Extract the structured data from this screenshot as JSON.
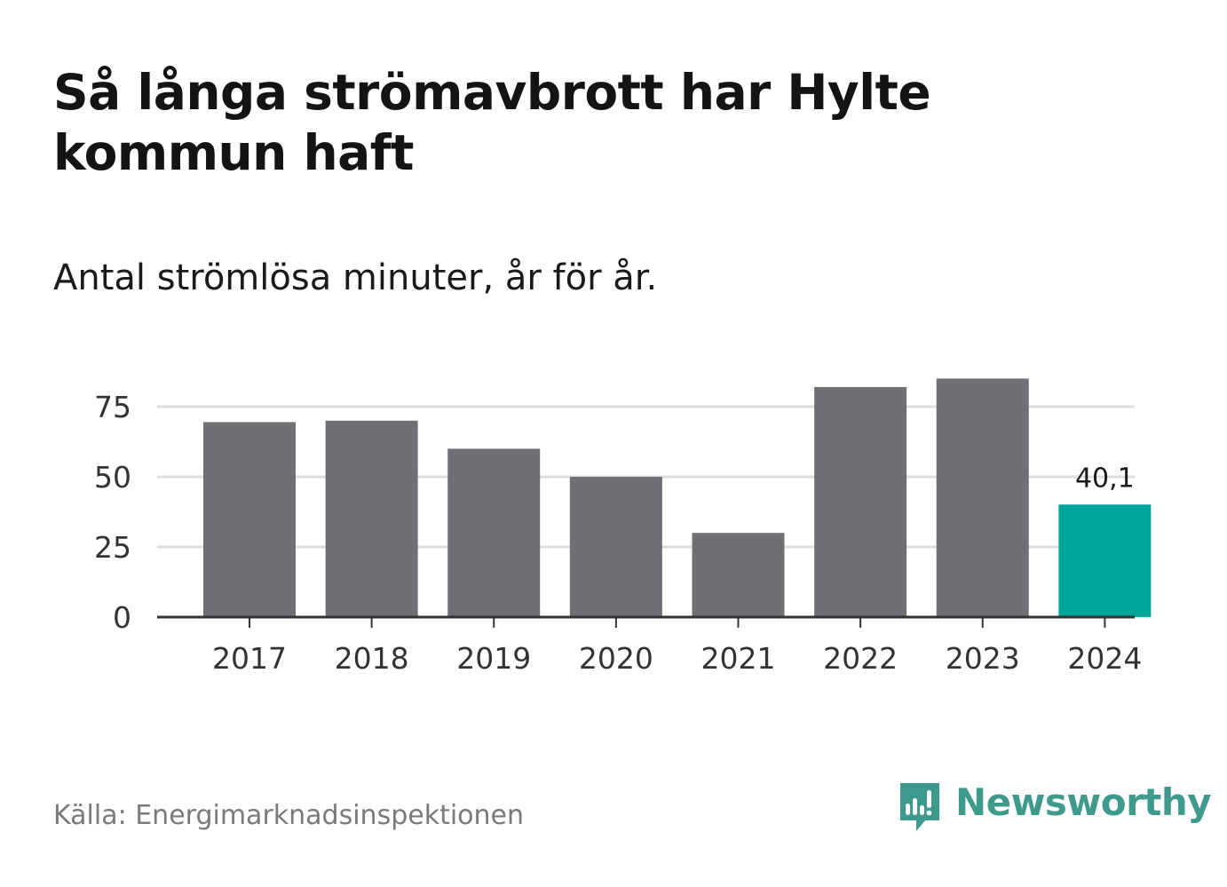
{
  "title": "Så långa strömavbrott har Hylte kommun haft",
  "subtitle": "Antal strömlösa minuter, år för år.",
  "source": "Källa: Energimarknadsinspektionen",
  "brand": {
    "name": "Newsworthy",
    "color": "#3f9a8e",
    "icon": "bar-chart-speech-bubble-icon"
  },
  "colors": {
    "bar": "#706f74",
    "highlight": "#00a59a",
    "grid": "#dddddd",
    "axis": "#333333"
  },
  "chart_data": {
    "type": "bar",
    "title": "Så långa strömavbrott har Hylte kommun haft",
    "subtitle": "Antal strömlösa minuter, år för år.",
    "categories": [
      "2017",
      "2018",
      "2019",
      "2020",
      "2021",
      "2022",
      "2023",
      "2024"
    ],
    "values": [
      69.5,
      70,
      60,
      50,
      30,
      82,
      85,
      40.1
    ],
    "highlight_index": 7,
    "data_labels": [
      {
        "index": 7,
        "text": "40,1"
      }
    ],
    "yticks": [
      0,
      25,
      50,
      75
    ],
    "ylim": [
      0,
      85
    ],
    "xlabel": "",
    "ylabel": "",
    "grid": true
  }
}
